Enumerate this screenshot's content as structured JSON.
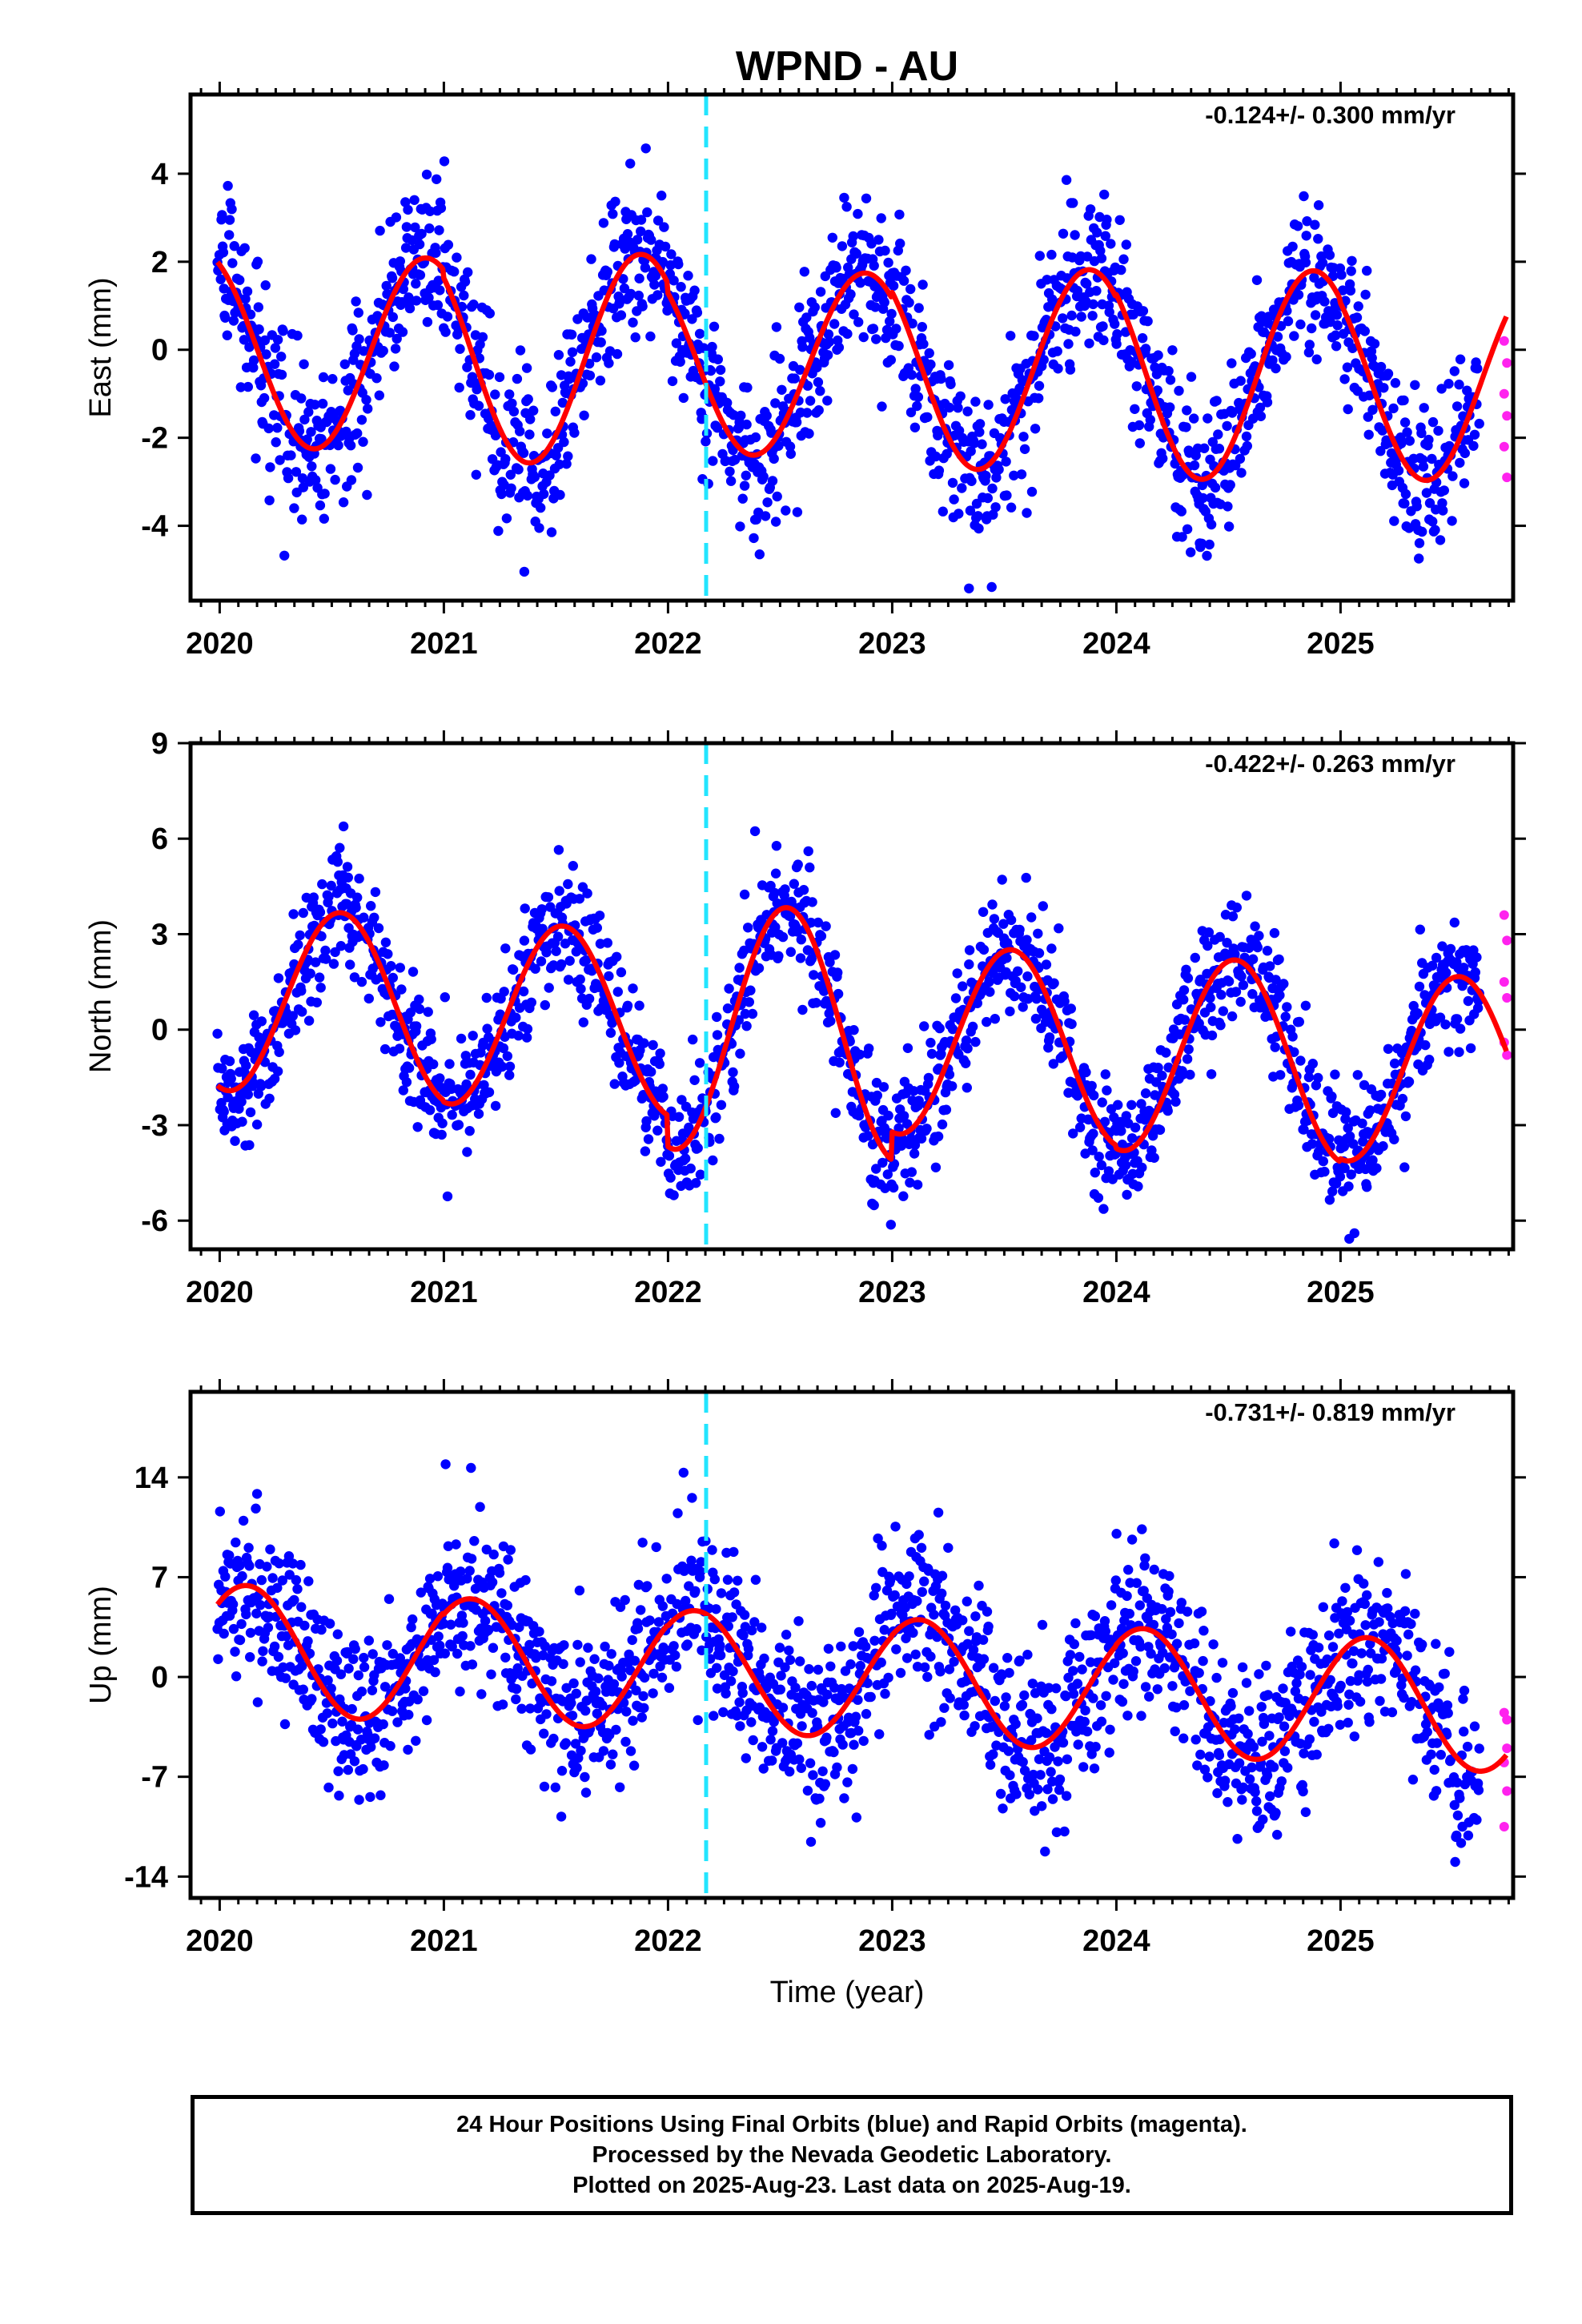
{
  "title": "WPND - AU",
  "xlabel": "Time (year)",
  "colors": {
    "final_points": "#0000ff",
    "rapid_points": "#ff22ee",
    "model_curve": "#ff0000",
    "event_line": "#22e5ff"
  },
  "caption": {
    "line1": "24 Hour Positions Using Final Orbits (blue) and Rapid Orbits (magenta).",
    "line2": "Processed by the Nevada Geodetic Laboratory.",
    "line3": "Plotted on 2025-Aug-23. Last data on 2025-Aug-19."
  },
  "chart_data": [
    {
      "type": "scatter",
      "ylabel": "East (mm)",
      "rate_label": "-0.124+/- 0.300 mm/yr",
      "xlim": [
        2019.87,
        2025.77
      ],
      "ylim": [
        -5.7,
        5.8
      ],
      "xticks": [
        2020,
        2021,
        2022,
        2023,
        2024,
        2025
      ],
      "yticks": [
        -4,
        -2,
        0,
        2,
        4
      ],
      "event_line_x": 2022.17,
      "model": {
        "offset": 0.0,
        "trend": -0.124,
        "annual": [
          {
            "year": 2020,
            "amp": 2.2,
            "peak": 0.92
          },
          {
            "year": 2021,
            "amp": 2.4,
            "peak": 0.88
          },
          {
            "year": 2022,
            "amp": 2.1,
            "peak": 0.88
          },
          {
            "year": 2023,
            "amp": 2.3,
            "peak": 0.88
          },
          {
            "year": 2024,
            "amp": 2.4,
            "peak": 0.88
          },
          {
            "year": 2025,
            "amp": 2.3,
            "peak": 0.88
          }
        ]
      },
      "noise_sd": 0.9,
      "rapid_values": [
        0.2,
        -0.3,
        -1.0,
        -1.5,
        -2.2,
        -2.9
      ]
    },
    {
      "type": "scatter",
      "ylabel": "North (mm)",
      "rate_label": "-0.422+/- 0.263 mm/yr",
      "xlim": [
        2019.87,
        2025.77
      ],
      "ylim": [
        -6.9,
        9.0
      ],
      "xticks": [
        2020,
        2021,
        2022,
        2023,
        2024,
        2025
      ],
      "yticks": [
        -6,
        -3,
        0,
        3,
        6,
        9
      ],
      "event_line_x": 2022.17,
      "model": {
        "offset": 1.0,
        "trend": -0.422,
        "annual": [
          {
            "year": 2020,
            "amp": 2.9,
            "peak": 0.54
          },
          {
            "year": 2021,
            "amp": 2.9,
            "peak": 0.53
          },
          {
            "year": 2022,
            "amp": 3.9,
            "peak": 0.53
          },
          {
            "year": 2023,
            "amp": 3.0,
            "peak": 0.53
          },
          {
            "year": 2024,
            "amp": 3.1,
            "peak": 0.53
          },
          {
            "year": 2025,
            "amp": 3.0,
            "peak": 0.53
          }
        ]
      },
      "noise_sd": 1.0,
      "rapid_values": [
        3.6,
        2.8,
        1.5,
        1.0,
        -0.4,
        -0.8
      ]
    },
    {
      "type": "scatter",
      "ylabel": "Up (mm)",
      "rate_label": "-0.731+/- 0.819 mm/yr",
      "xlim": [
        2019.87,
        2025.77
      ],
      "ylim": [
        -15.5,
        20.0
      ],
      "xticks": [
        2020,
        2021,
        2022,
        2023,
        2024,
        2025
      ],
      "yticks": [
        -14,
        -7,
        0,
        7,
        14
      ],
      "event_line_x": 2022.17,
      "model": {
        "offset": 2.0,
        "trend": -0.731,
        "annual": [
          {
            "year": 2020,
            "amp": 4.5,
            "peak": 0.12
          },
          {
            "year": 2021,
            "amp": 4.3,
            "peak": 0.12
          },
          {
            "year": 2022,
            "amp": 4.2,
            "peak": 0.12
          },
          {
            "year": 2023,
            "amp": 4.3,
            "peak": 0.12
          },
          {
            "year": 2024,
            "amp": 4.4,
            "peak": 0.12
          },
          {
            "year": 2025,
            "amp": 4.5,
            "peak": 0.12
          }
        ]
      },
      "noise_sd": 3.0,
      "rapid_values": [
        -2.5,
        -3.0,
        -6.0,
        -8.0,
        -10.5,
        -5.0
      ]
    }
  ]
}
